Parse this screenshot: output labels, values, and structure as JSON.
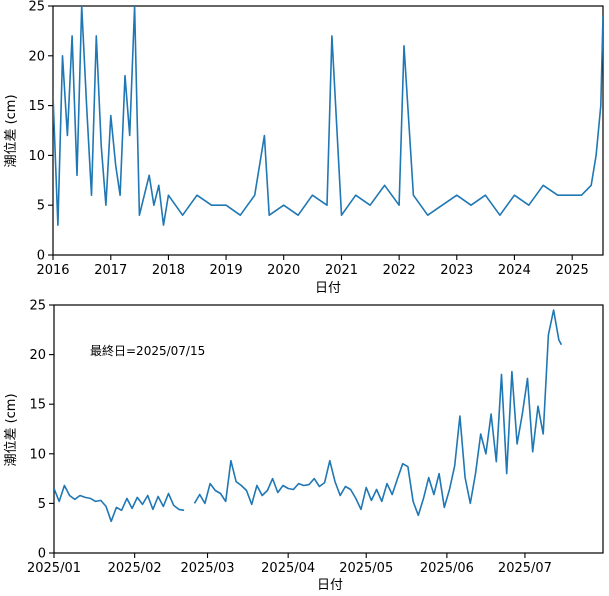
{
  "chart_data": [
    {
      "type": "line",
      "title": "",
      "xlabel": "日付",
      "ylabel": "潮位差 (cm)",
      "ylim": [
        0,
        25
      ],
      "xlim": [
        "2016-01-01",
        "2025-07-15"
      ],
      "yticks": [
        "0",
        "5",
        "10",
        "15",
        "20",
        "25"
      ],
      "xticks": [
        "2016",
        "2017",
        "2018",
        "2019",
        "2020",
        "2021",
        "2022",
        "2023",
        "2024",
        "2025"
      ],
      "grid": false,
      "color": "#1f77b4",
      "series": [
        {
          "x": [
            "2016-01-01",
            "2016-02-01",
            "2016-03-01",
            "2016-04-01",
            "2016-05-01",
            "2016-06-01",
            "2016-07-01",
            "2016-08-01",
            "2016-09-01",
            "2016-10-01",
            "2016-11-01",
            "2016-12-01",
            "2017-01-01",
            "2017-02-01",
            "2017-03-01",
            "2017-04-01",
            "2017-05-01",
            "2017-06-01",
            "2017-07-01",
            "2017-08-01",
            "2017-09-01",
            "2017-10-01",
            "2017-11-01",
            "2017-12-01",
            "2018-01-01",
            "2018-04-01",
            "2018-07-01",
            "2018-10-01",
            "2019-01-01",
            "2019-04-01",
            "2019-07-01",
            "2019-09-01",
            "2019-10-01",
            "2020-01-01",
            "2020-04-01",
            "2020-07-01",
            "2020-10-01",
            "2020-11-01",
            "2021-01-01",
            "2021-04-01",
            "2021-07-01",
            "2021-10-01",
            "2022-01-01",
            "2022-02-01",
            "2022-04-01",
            "2022-07-01",
            "2022-10-01",
            "2023-01-01",
            "2023-04-01",
            "2023-07-01",
            "2023-10-01",
            "2024-01-01",
            "2024-04-01",
            "2024-07-01",
            "2024-10-01",
            "2025-01-01",
            "2025-03-01",
            "2025-05-01",
            "2025-06-01",
            "2025-07-01",
            "2025-07-15"
          ],
          "values": [
            16,
            3,
            20,
            12,
            22,
            8,
            25,
            15,
            6,
            22,
            11,
            5,
            14,
            9,
            6,
            18,
            12,
            25,
            4,
            6,
            8,
            5,
            7,
            3,
            6,
            4,
            6,
            5,
            5,
            4,
            6,
            12,
            4,
            5,
            4,
            6,
            5,
            22,
            4,
            6,
            5,
            7,
            5,
            21,
            6,
            4,
            5,
            6,
            5,
            6,
            4,
            6,
            5,
            7,
            6,
            6,
            6,
            7,
            10,
            15,
            24
          ]
        }
      ]
    },
    {
      "type": "line",
      "title": "",
      "xlabel": "日付",
      "ylabel": "潮位差 (cm)",
      "ylim": [
        0,
        25
      ],
      "xlim": [
        "2025-01-01",
        "2025-07-31"
      ],
      "yticks": [
        "0",
        "5",
        "10",
        "15",
        "20",
        "25"
      ],
      "xticks": [
        "2025/01",
        "2025/02",
        "2025/03",
        "2025/04",
        "2025/05",
        "2025/06",
        "2025/07"
      ],
      "annotation": "最終日=2025/07/15",
      "grid": false,
      "color": "#1f77b4",
      "series": [
        {
          "x": [
            "2025-01-01",
            "2025-01-03",
            "2025-01-05",
            "2025-01-07",
            "2025-01-09",
            "2025-01-11",
            "2025-01-13",
            "2025-01-15",
            "2025-01-17",
            "2025-01-19",
            "2025-01-21",
            "2025-01-23",
            "2025-01-25",
            "2025-01-27",
            "2025-01-29",
            "2025-01-31",
            "2025-02-02",
            "2025-02-04",
            "2025-02-06",
            "2025-02-08",
            "2025-02-10",
            "2025-02-12",
            "2025-02-14",
            "2025-02-16",
            "2025-02-18",
            "2025-02-20",
            null,
            "2025-02-24",
            "2025-02-26",
            "2025-02-28",
            "2025-03-02",
            "2025-03-04",
            "2025-03-06",
            "2025-03-08",
            "2025-03-10",
            "2025-03-12",
            "2025-03-14",
            "2025-03-16",
            "2025-03-18",
            "2025-03-20",
            "2025-03-22",
            "2025-03-24",
            "2025-03-26",
            "2025-03-28",
            "2025-03-30",
            "2025-04-01",
            "2025-04-03",
            "2025-04-05",
            "2025-04-07",
            "2025-04-09",
            "2025-04-11",
            "2025-04-13",
            "2025-04-15",
            "2025-04-17",
            "2025-04-19",
            "2025-04-21",
            "2025-04-23",
            "2025-04-25",
            "2025-04-27",
            "2025-04-29",
            "2025-05-01",
            "2025-05-03",
            "2025-05-05",
            "2025-05-07",
            "2025-05-09",
            "2025-05-11",
            "2025-05-13",
            "2025-05-15",
            "2025-05-17",
            "2025-05-19",
            "2025-05-21",
            "2025-05-23",
            "2025-05-25",
            "2025-05-27",
            "2025-05-29",
            "2025-05-31",
            "2025-06-02",
            "2025-06-04",
            "2025-06-06",
            "2025-06-08",
            "2025-06-10",
            "2025-06-12",
            "2025-06-14",
            "2025-06-16",
            "2025-06-18",
            "2025-06-20",
            "2025-06-22",
            "2025-06-24",
            "2025-06-26",
            "2025-06-28",
            "2025-06-30",
            "2025-07-02",
            "2025-07-04",
            "2025-07-06",
            "2025-07-08",
            "2025-07-10",
            "2025-07-12",
            "2025-07-14",
            "2025-07-15"
          ],
          "values": [
            6.5,
            5.2,
            6.8,
            5.8,
            5.4,
            5.8,
            5.6,
            5.5,
            5.2,
            5.3,
            4.7,
            3.2,
            4.6,
            4.3,
            5.5,
            4.5,
            5.6,
            4.9,
            5.8,
            4.4,
            5.7,
            4.7,
            6.0,
            4.8,
            4.4,
            4.3,
            null,
            5.0,
            5.9,
            5.0,
            7.0,
            6.3,
            6.0,
            5.2,
            9.3,
            7.2,
            6.8,
            6.3,
            4.9,
            6.8,
            5.8,
            6.3,
            7.5,
            6.1,
            6.8,
            6.5,
            6.4,
            7.0,
            6.8,
            6.9,
            7.5,
            6.7,
            7.1,
            9.3,
            7.2,
            5.8,
            6.7,
            6.4,
            5.5,
            4.4,
            6.6,
            5.3,
            6.4,
            5.2,
            7.0,
            5.9,
            7.5,
            9.0,
            8.7,
            5.2,
            3.8,
            5.5,
            7.6,
            5.9,
            8.0,
            4.6,
            6.4,
            8.8,
            13.8,
            7.6,
            5.0,
            8.0,
            12.0,
            10.0,
            14.0,
            9.2,
            18.0,
            8.0,
            18.3,
            11.0,
            14.0,
            17.6,
            10.2,
            14.8,
            12.0,
            22.0,
            24.5,
            21.5,
            21.0
          ]
        }
      ]
    }
  ]
}
